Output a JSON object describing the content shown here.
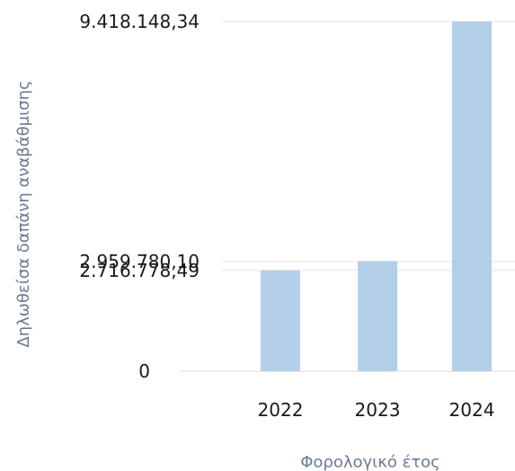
{
  "chart_data": {
    "type": "bar",
    "categories": [
      "2022",
      "2023",
      "2024"
    ],
    "values": [
      2716778.49,
      2959780.1,
      9418148.34
    ],
    "y_tick_values": [
      0,
      2716778.49,
      2959780.1,
      9418148.34
    ],
    "y_tick_labels": [
      "0",
      "2.716.778,49",
      "2.959.780,10",
      "9.418.148,34"
    ],
    "xlabel": "Φορολογικό έτος",
    "ylabel": "Δηλωθείσα δαπάνη αναβάθμισης",
    "ylim": [
      0,
      9418148.34
    ],
    "grid": true,
    "bar_color": "#b3cfe8",
    "grid_color": "#ececf0"
  }
}
